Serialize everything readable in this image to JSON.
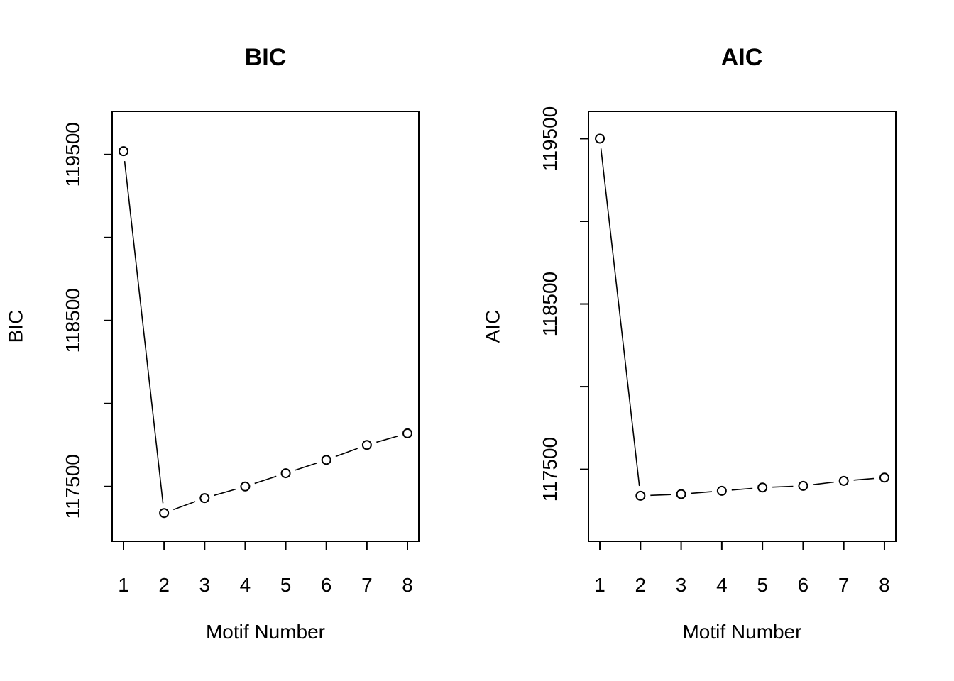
{
  "chart_data": [
    {
      "type": "line",
      "title": "BIC",
      "xlabel": "Motif Number",
      "ylabel": "BIC",
      "x": [
        1,
        2,
        3,
        4,
        5,
        6,
        7,
        8
      ],
      "values": [
        119520,
        117340,
        117430,
        117500,
        117580,
        117660,
        117750,
        117820
      ],
      "x_ticks": [
        "1",
        "2",
        "3",
        "4",
        "5",
        "6",
        "7",
        "8"
      ],
      "y_ticks": [
        117500,
        118000,
        118500,
        119000,
        119500
      ],
      "y_tick_labels": [
        "117500",
        "",
        "118500",
        "",
        "119500"
      ],
      "ylim": [
        117170,
        119760
      ],
      "markers": "open-circle",
      "grid": false
    },
    {
      "type": "line",
      "title": "AIC",
      "xlabel": "Motif Number",
      "ylabel": "AIC",
      "x": [
        1,
        2,
        3,
        4,
        5,
        6,
        7,
        8
      ],
      "values": [
        119500,
        117340,
        117350,
        117370,
        117390,
        117400,
        117430,
        117450
      ],
      "x_ticks": [
        "1",
        "2",
        "3",
        "4",
        "5",
        "6",
        "7",
        "8"
      ],
      "y_ticks": [
        117500,
        118000,
        118500,
        119000,
        119500
      ],
      "y_tick_labels": [
        "117500",
        "",
        "118500",
        "",
        "119500"
      ],
      "ylim": [
        117065,
        119665
      ],
      "markers": "open-circle",
      "grid": false
    }
  ]
}
